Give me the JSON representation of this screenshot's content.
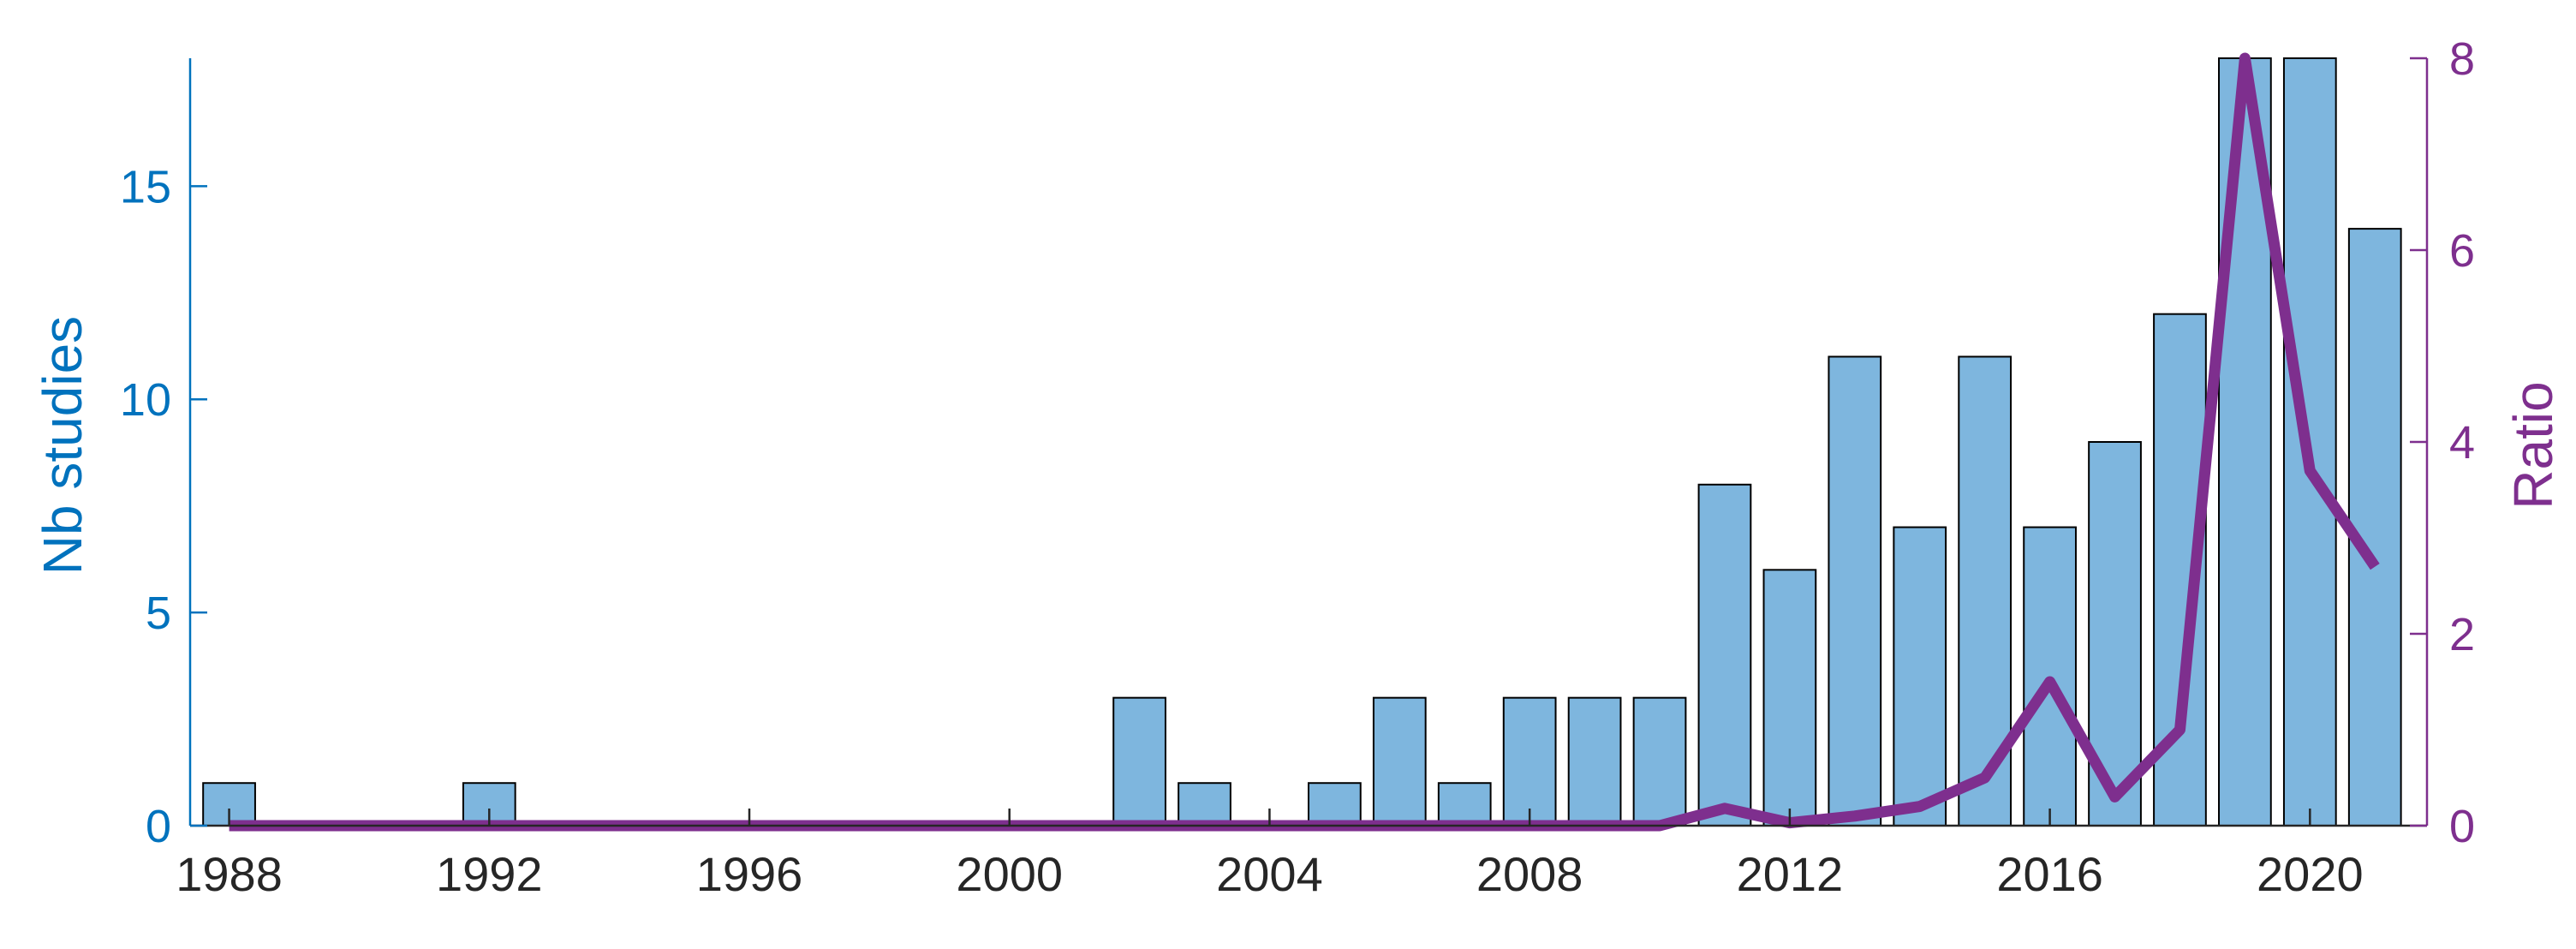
{
  "chart_data": {
    "type": "bar",
    "x": [
      1988,
      1989,
      1990,
      1991,
      1992,
      1993,
      1994,
      1995,
      1996,
      1997,
      1998,
      1999,
      2000,
      2001,
      2002,
      2003,
      2004,
      2005,
      2006,
      2007,
      2008,
      2009,
      2010,
      2011,
      2012,
      2013,
      2014,
      2015,
      2016,
      2017,
      2018,
      2019,
      2020,
      2021
    ],
    "series": [
      {
        "name": "",
        "type": "bar",
        "axis": "left",
        "values": [
          1,
          0,
          0,
          0,
          1,
          0,
          0,
          0,
          0,
          0,
          0,
          0,
          0,
          0,
          3,
          1,
          0,
          1,
          3,
          1,
          3,
          3,
          3,
          8,
          6,
          11,
          7,
          11,
          7,
          9,
          12,
          18,
          18,
          14
        ]
      },
      {
        "name": "",
        "type": "line",
        "axis": "right",
        "values": [
          0,
          0,
          0,
          0,
          0,
          0,
          0,
          0,
          0,
          0,
          0,
          0,
          0,
          0,
          0,
          0,
          0,
          0,
          0,
          0,
          0,
          0,
          0,
          0.18,
          0.03,
          0.1,
          0.2,
          0.5,
          1.5,
          0.3,
          1.0,
          8.0,
          3.7,
          2.7
        ]
      }
    ],
    "xlabel": "",
    "ylabel": "Nb studies",
    "y2label": "Ratio",
    "xlim": [
      1987.4,
      2021.8
    ],
    "ylim": [
      0,
      18
    ],
    "y2lim": [
      0,
      8
    ],
    "xticks": [
      "1988",
      "1992",
      "1996",
      "2000",
      "2004",
      "2008",
      "2012",
      "2016",
      "2020"
    ],
    "yticks": [
      "0",
      "5",
      "10",
      "15"
    ],
    "y2ticks": [
      "0",
      "2",
      "4",
      "6",
      "8"
    ],
    "grid": false,
    "colors": {
      "bar_fill": "#7eb6de",
      "bar_edge": "#000000",
      "line": "#7e2f8e",
      "left_axis": "#0072bd",
      "right_axis": "#7e2f8e",
      "x_axis": "#262626"
    }
  }
}
